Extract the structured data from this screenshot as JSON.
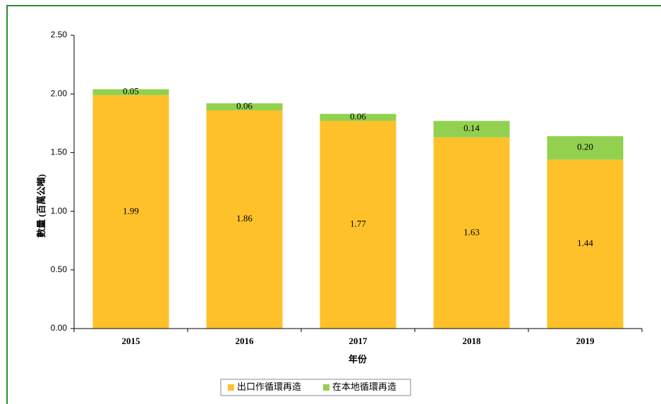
{
  "chart_data": {
    "type": "stacked_bar",
    "y_label": "數量 (百萬公噸)",
    "x_label": "年份",
    "categories": [
      "2015",
      "2016",
      "2017",
      "2018",
      "2019"
    ],
    "series": [
      {
        "name": "出口作循環再造",
        "color": "#ffc12a",
        "values": [
          1.99,
          1.86,
          1.77,
          1.63,
          1.44
        ],
        "value_labels": [
          "1.99",
          "1.86",
          "1.77",
          "1.63",
          "1.44"
        ]
      },
      {
        "name": "在本地循環再造",
        "color": "#92d050",
        "values": [
          0.05,
          0.06,
          0.06,
          0.14,
          0.2
        ],
        "value_labels": [
          "0.05",
          "0.06",
          "0.06",
          "0.14",
          "0.20"
        ]
      }
    ],
    "ylim": [
      0,
      2.5
    ],
    "yticks": [
      {
        "value": 0,
        "label": "0.00"
      },
      {
        "value": 0.5,
        "label": "0.50"
      },
      {
        "value": 1,
        "label": "1.00"
      },
      {
        "value": 1.5,
        "label": "1.50"
      },
      {
        "value": 2,
        "label": "2.00"
      },
      {
        "value": 2.5,
        "label": "2.50"
      }
    ],
    "legend": "bottom"
  }
}
